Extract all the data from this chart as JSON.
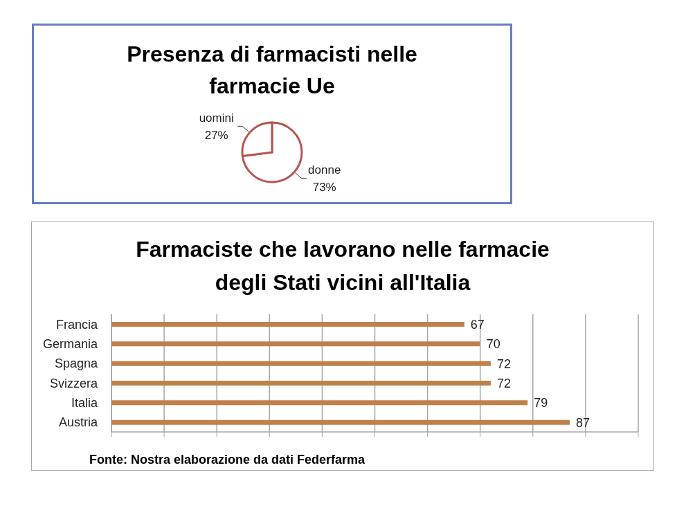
{
  "chart_data": [
    {
      "type": "pie",
      "title": "Presenza di farmacisti nelle farmacie Ue",
      "categories": [
        "donne",
        "uomini"
      ],
      "values": [
        73,
        27
      ],
      "colors": [
        "#ffffff",
        "#ffffff"
      ],
      "value_labels": [
        "73%",
        "27%"
      ]
    },
    {
      "type": "bar",
      "orientation": "horizontal",
      "title": "Farmaciste che lavorano nelle farmacie degli Stati vicini all'Italia",
      "categories": [
        "Francia",
        "Germania",
        "Spagna",
        "Svizzera",
        "Italia",
        "Austria"
      ],
      "values": [
        67,
        70,
        72,
        72,
        79,
        87
      ],
      "color": "#c0804a",
      "xlim": [
        0,
        100
      ],
      "xticks": [
        {
          "value": 0,
          "label": null
        },
        {
          "value": 10,
          "label": null
        },
        {
          "value": 20,
          "label": null
        },
        {
          "value": 30,
          "label": null
        },
        {
          "value": 40,
          "label": null
        },
        {
          "value": 50,
          "label": null
        },
        {
          "value": 60,
          "label": null
        },
        {
          "value": 70,
          "label": null
        },
        {
          "value": 80,
          "label": null
        },
        {
          "value": 90,
          "label": null
        },
        {
          "value": 100,
          "label": null
        }
      ],
      "grid": "x",
      "data_labels": true,
      "tick_labels": "y",
      "annotations": [
        "Fonte: Nostra elaborazione da dati Federfarma"
      ]
    }
  ]
}
